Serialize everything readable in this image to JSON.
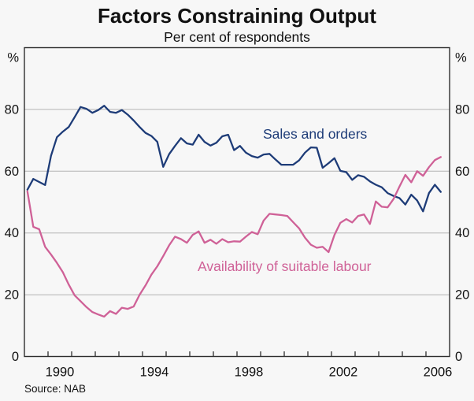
{
  "header": {
    "title": "Factors Constraining Output",
    "subtitle": "Per cent of respondents"
  },
  "source": "Source: NAB",
  "chart_data": {
    "type": "line",
    "title": "Factors Constraining Output",
    "subtitle": "Per cent of respondents",
    "grid": "horizontal",
    "style": {
      "background": "#f7f7f7",
      "grid_color": "#b3b3b3",
      "axis_color": "#2e2e2e"
    },
    "x_axis": {
      "xlim": [
        1989,
        2007
      ],
      "tick_from": 1990,
      "tick_to": 2006,
      "tick_interval_years": 1,
      "label_years": [
        1990,
        1994,
        1998,
        2002,
        2006
      ]
    },
    "y_axis": {
      "ylim": [
        0,
        100
      ],
      "ticks": [
        0,
        20,
        40,
        60,
        80
      ],
      "unit": "%",
      "sides": "both"
    },
    "x_start": 1989.125,
    "x_step": 0.25,
    "series": [
      {
        "name": "Sales and orders",
        "color": "#1e3c78",
        "values": [
          54,
          57.5,
          56.5,
          55.5,
          65,
          71,
          72.8,
          74.3,
          77.5,
          80.8,
          80.2,
          78.9,
          79.8,
          81.2,
          79.2,
          78.9,
          79.8,
          78.3,
          76.4,
          74.3,
          72.4,
          71.4,
          69.5,
          61.4,
          65.5,
          68.2,
          70.7,
          69,
          68.6,
          71.8,
          69.5,
          68.3,
          69.2,
          71.3,
          71.8,
          66.8,
          68.2,
          66,
          64.9,
          64.4,
          65.4,
          65.6,
          63.8,
          62.1,
          62.1,
          62.1,
          63.5,
          66,
          67.7,
          67.6,
          61.1,
          62.6,
          64.2,
          60.1,
          59.7,
          57.2,
          58.7,
          58.2,
          56.7,
          55.6,
          54.8,
          52.9,
          52,
          51.3,
          49.2,
          52.4,
          50.5,
          47,
          52.9,
          55.6,
          53.3
        ]
      },
      {
        "name": "Availability of suitable labour",
        "color": "#cf6197",
        "values": [
          53.5,
          42,
          41.2,
          35.5,
          33,
          30.3,
          27.3,
          23.3,
          19.8,
          17.9,
          16,
          14.4,
          13.6,
          12.9,
          14.7,
          13.8,
          15.8,
          15.4,
          16.2,
          20,
          23,
          26.5,
          29.2,
          32.5,
          36,
          38.8,
          38,
          36.8,
          39.4,
          40.5,
          36.8,
          37.8,
          36.5,
          38,
          37,
          37.3,
          37.2,
          38.8,
          40.3,
          39.6,
          44,
          46.2,
          46,
          45.8,
          45.5,
          43.5,
          41.5,
          38.5,
          36.2,
          35.2,
          35.5,
          33.8,
          39.4,
          43.3,
          44.5,
          43.4,
          45.5,
          46,
          42.9,
          50.2,
          48.5,
          48.3,
          51,
          55,
          58.8,
          56.4,
          60,
          58.5,
          61.3,
          63.6,
          64.6
        ]
      }
    ],
    "source": "Source: NAB"
  }
}
